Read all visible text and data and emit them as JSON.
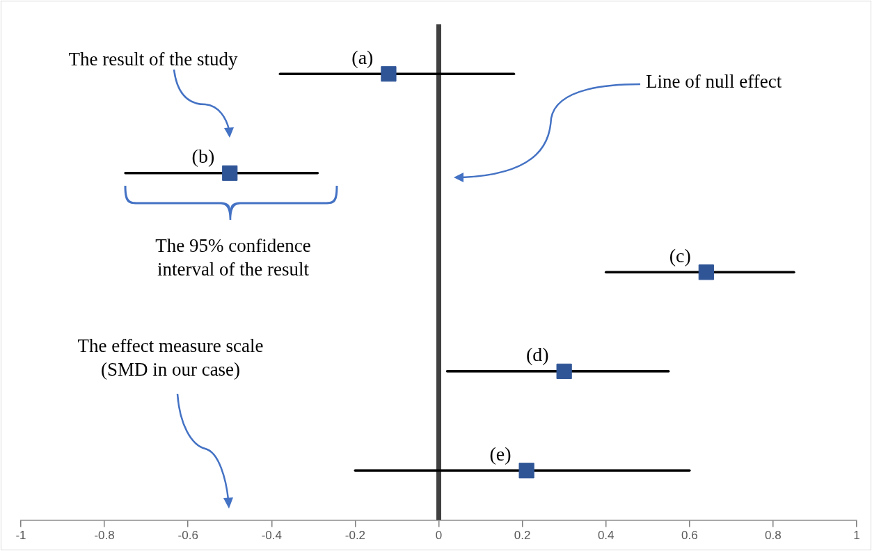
{
  "chart_data": {
    "type": "scatter",
    "orientation": "horizontal",
    "categories": [
      "(a)",
      "(b)",
      "(c)",
      "(d)",
      "(e)"
    ],
    "color": "#2f5597",
    "values": [
      -0.12,
      -0.5,
      0.64,
      0.3,
      0.21
    ],
    "errors": [
      [
        -0.38,
        0.18
      ],
      [
        -0.75,
        -0.29
      ],
      [
        0.4,
        0.85
      ],
      [
        0.02,
        0.55
      ],
      [
        -0.2,
        0.6
      ]
    ],
    "xlim": [
      -1,
      1
    ],
    "xticks": [
      -1,
      -0.8,
      -0.6,
      -0.4,
      -0.2,
      0,
      0.2,
      0.4,
      0.6,
      0.8,
      1
    ],
    "ref_lines": [
      {
        "axis": "x",
        "value": 0,
        "color": "#404040"
      }
    ],
    "annotations": [
      "The result of the study",
      "The 95% confidence interval of the result",
      "The effect measure scale (SMD in our case)",
      "Line of null effect"
    ],
    "marker": "square",
    "grid": false,
    "legend": false,
    "tick_labels": "x"
  }
}
